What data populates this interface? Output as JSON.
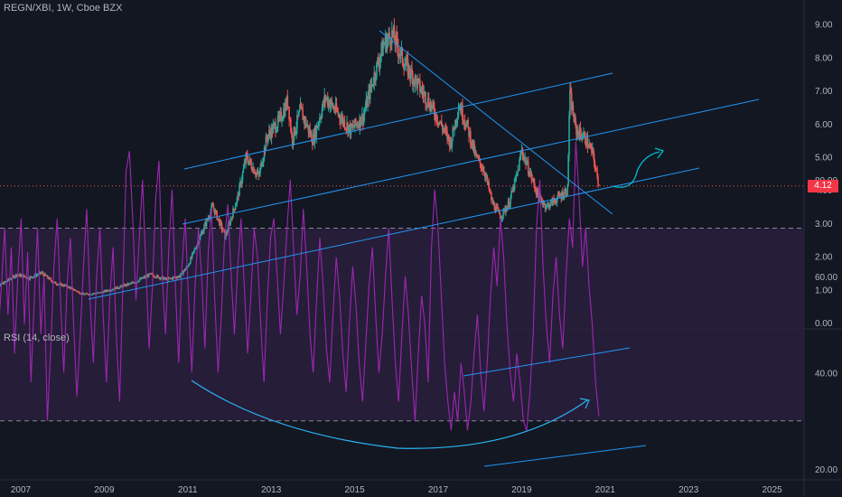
{
  "symbol_title": "REGN/XBI, 1W, Cboe BZX",
  "rsi_title": "RSI (14, close)",
  "last_price": "4.12",
  "colors": {
    "background": "#131722",
    "up": "#26a69a",
    "down": "#ef5350",
    "trendline": "#2196f3",
    "rsi": "#9c27b0",
    "rsi_band": "#2a1f3d",
    "price_badge": "#f23645"
  },
  "chart_data": [
    {
      "type": "candlestick",
      "title": "REGN/XBI, 1W, Cboe BZX",
      "ylim": [
        0,
        9.3
      ],
      "y_ticks": [
        "9.00",
        "8.00",
        "7.00",
        "6.00",
        "5.00",
        "4.00",
        "3.00",
        "2.00",
        "1.00",
        "0.00"
      ],
      "x_ticks": [
        "2007",
        "2009",
        "2011",
        "2013",
        "2015",
        "2017",
        "2019",
        "2021",
        "2023",
        "2025"
      ],
      "grid": false,
      "anchor_points": [
        [
          2006.3,
          1.0
        ],
        [
          2006.6,
          1.2
        ],
        [
          2006.9,
          1.45
        ],
        [
          2007.2,
          1.35
        ],
        [
          2007.5,
          1.5
        ],
        [
          2007.8,
          1.2
        ],
        [
          2008.1,
          1.1
        ],
        [
          2008.5,
          0.85
        ],
        [
          2008.9,
          0.9
        ],
        [
          2009.3,
          1.05
        ],
        [
          2009.7,
          1.2
        ],
        [
          2010.1,
          1.45
        ],
        [
          2010.5,
          1.3
        ],
        [
          2010.8,
          1.4
        ],
        [
          2011.0,
          1.7
        ],
        [
          2011.3,
          2.6
        ],
        [
          2011.6,
          3.5
        ],
        [
          2011.9,
          2.6
        ],
        [
          2012.2,
          3.8
        ],
        [
          2012.4,
          5.0
        ],
        [
          2012.7,
          4.4
        ],
        [
          2012.9,
          5.6
        ],
        [
          2013.2,
          6.1
        ],
        [
          2013.4,
          6.7
        ],
        [
          2013.5,
          5.5
        ],
        [
          2013.7,
          6.4
        ],
        [
          2014.0,
          5.5
        ],
        [
          2014.3,
          6.8
        ],
        [
          2014.6,
          6.3
        ],
        [
          2014.9,
          5.8
        ],
        [
          2015.2,
          6.2
        ],
        [
          2015.5,
          7.6
        ],
        [
          2015.7,
          8.4
        ],
        [
          2015.9,
          8.7
        ],
        [
          2016.2,
          7.8
        ],
        [
          2016.5,
          7.2
        ],
        [
          2016.8,
          6.6
        ],
        [
          2017.1,
          5.9
        ],
        [
          2017.3,
          5.4
        ],
        [
          2017.5,
          6.6
        ],
        [
          2017.7,
          5.9
        ],
        [
          2017.9,
          5.0
        ],
        [
          2018.1,
          4.6
        ],
        [
          2018.3,
          3.6
        ],
        [
          2018.5,
          3.2
        ],
        [
          2018.7,
          3.6
        ],
        [
          2018.9,
          4.5
        ],
        [
          2019.0,
          5.2
        ],
        [
          2019.2,
          4.5
        ],
        [
          2019.4,
          3.8
        ],
        [
          2019.6,
          3.5
        ],
        [
          2019.8,
          3.7
        ],
        [
          2020.0,
          3.9
        ],
        [
          2020.1,
          4.0
        ],
        [
          2020.15,
          6.9
        ],
        [
          2020.3,
          5.8
        ],
        [
          2020.5,
          5.6
        ],
        [
          2020.7,
          5.1
        ],
        [
          2020.85,
          4.12
        ]
      ],
      "last_value": 4.12
    },
    {
      "type": "line",
      "title": "RSI (14, close)",
      "ylim": [
        17,
        94
      ],
      "y_ticks": [
        "80.00",
        "60.00",
        "40.00",
        "20.00"
      ],
      "bands": [
        30,
        70
      ],
      "series": [
        {
          "values": [
            62,
            75,
            48,
            58,
            70,
            52,
            66,
            44,
            60,
            72,
            50,
            65,
            38,
            55,
            70,
            48,
            60,
            30,
            45,
            62,
            72,
            55,
            40,
            58,
            68,
            50,
            35,
            48,
            62,
            74,
            55,
            42,
            60,
            70,
            52,
            38,
            55,
            66,
            48,
            34,
            58,
            82,
            86,
            72,
            55,
            68,
            80,
            62,
            45,
            58,
            76,
            84,
            60,
            48,
            66,
            78,
            58,
            42,
            62,
            72,
            55,
            40,
            58,
            70,
            60,
            45,
            65,
            74,
            55,
            40,
            52,
            68,
            75,
            60,
            48,
            62,
            72,
            58,
            44,
            56,
            70,
            64,
            50,
            38,
            55,
            68,
            72,
            60,
            48,
            58,
            70,
            80,
            66,
            52,
            60,
            74,
            62,
            48,
            40,
            55,
            68,
            58,
            45,
            38,
            52,
            64,
            56,
            44,
            36,
            50,
            62,
            54,
            42,
            34,
            46,
            58,
            66,
            52,
            40,
            48,
            60,
            70,
            55,
            42,
            34,
            48,
            60,
            52,
            40,
            30,
            44,
            56,
            50,
            38,
            66,
            78,
            70,
            56,
            42,
            34,
            28,
            36,
            30,
            42,
            36,
            28,
            34,
            44,
            52,
            40,
            32,
            42,
            56,
            66,
            58,
            72,
            64,
            50,
            40,
            34,
            44,
            38,
            30,
            28,
            36,
            48,
            70,
            80,
            62,
            50,
            42,
            56,
            64,
            52,
            45,
            60,
            72,
            66,
            88,
            76,
            62,
            70,
            58,
            50,
            38,
            31
          ]
        }
      ]
    }
  ]
}
